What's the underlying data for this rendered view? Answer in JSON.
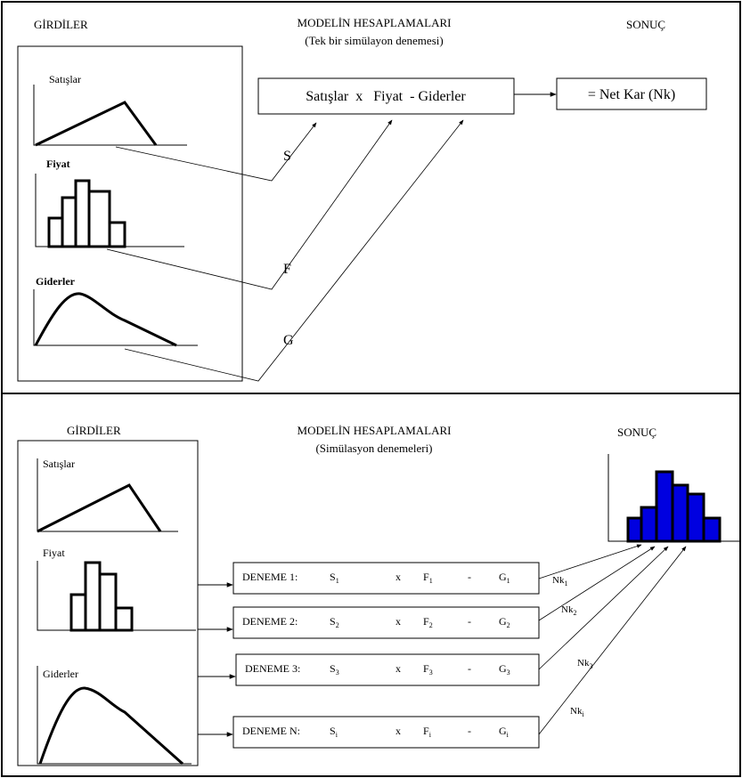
{
  "top": {
    "inputs_title": "GİRDİLER",
    "model_title": "MODELİN HESAPLAMALARI",
    "model_subtitle": "(Tek bir simülayon denemesi)",
    "result_title": "SONUÇ",
    "inputs": [
      "Satışlar",
      "Fiyat",
      "Giderler"
    ],
    "formula": "Satışlar  x   Fiyat  - Giderler",
    "result": "= Net Kar (Nk)",
    "letters": [
      "S",
      "F",
      "G"
    ]
  },
  "bottom": {
    "inputs_title": "GİRDİLER",
    "model_title": "MODELİN HESAPLAMALARI",
    "model_subtitle": "(Simülasyon denemeleri)",
    "result_title": "SONUÇ",
    "inputs": [
      "Satışlar",
      "Fiyat",
      "Giderler"
    ],
    "trials": [
      {
        "label": "DENEME 1:",
        "s": "S",
        "s_sub": "1",
        "x": "x",
        "f": "F",
        "f_sub": "1",
        "minus": "-",
        "g": "G",
        "g_sub": "1"
      },
      {
        "label": "DENEME 2:",
        "s": "S",
        "s_sub": "2",
        "x": "x",
        "f": "F",
        "f_sub": "2",
        "minus": "-",
        "g": "G",
        "g_sub": "2"
      },
      {
        "label": "DENEME 3:",
        "s": "S",
        "s_sub": "3",
        "x": "x",
        "f": "F",
        "f_sub": "3",
        "minus": "-",
        "g": "G",
        "g_sub": "3"
      },
      {
        "label": "DENEME N:",
        "s": "S",
        "s_sub": "i",
        "x": "x",
        "f": "F",
        "f_sub": "i",
        "minus": "-",
        "g": "G",
        "g_sub": "i"
      }
    ],
    "outputs": [
      {
        "name": "Nk",
        "sub": "1"
      },
      {
        "name": "Nk",
        "sub": "2"
      },
      {
        "name": "Nk",
        "sub": "3"
      },
      {
        "name": "Nk",
        "sub": "i"
      }
    ]
  }
}
